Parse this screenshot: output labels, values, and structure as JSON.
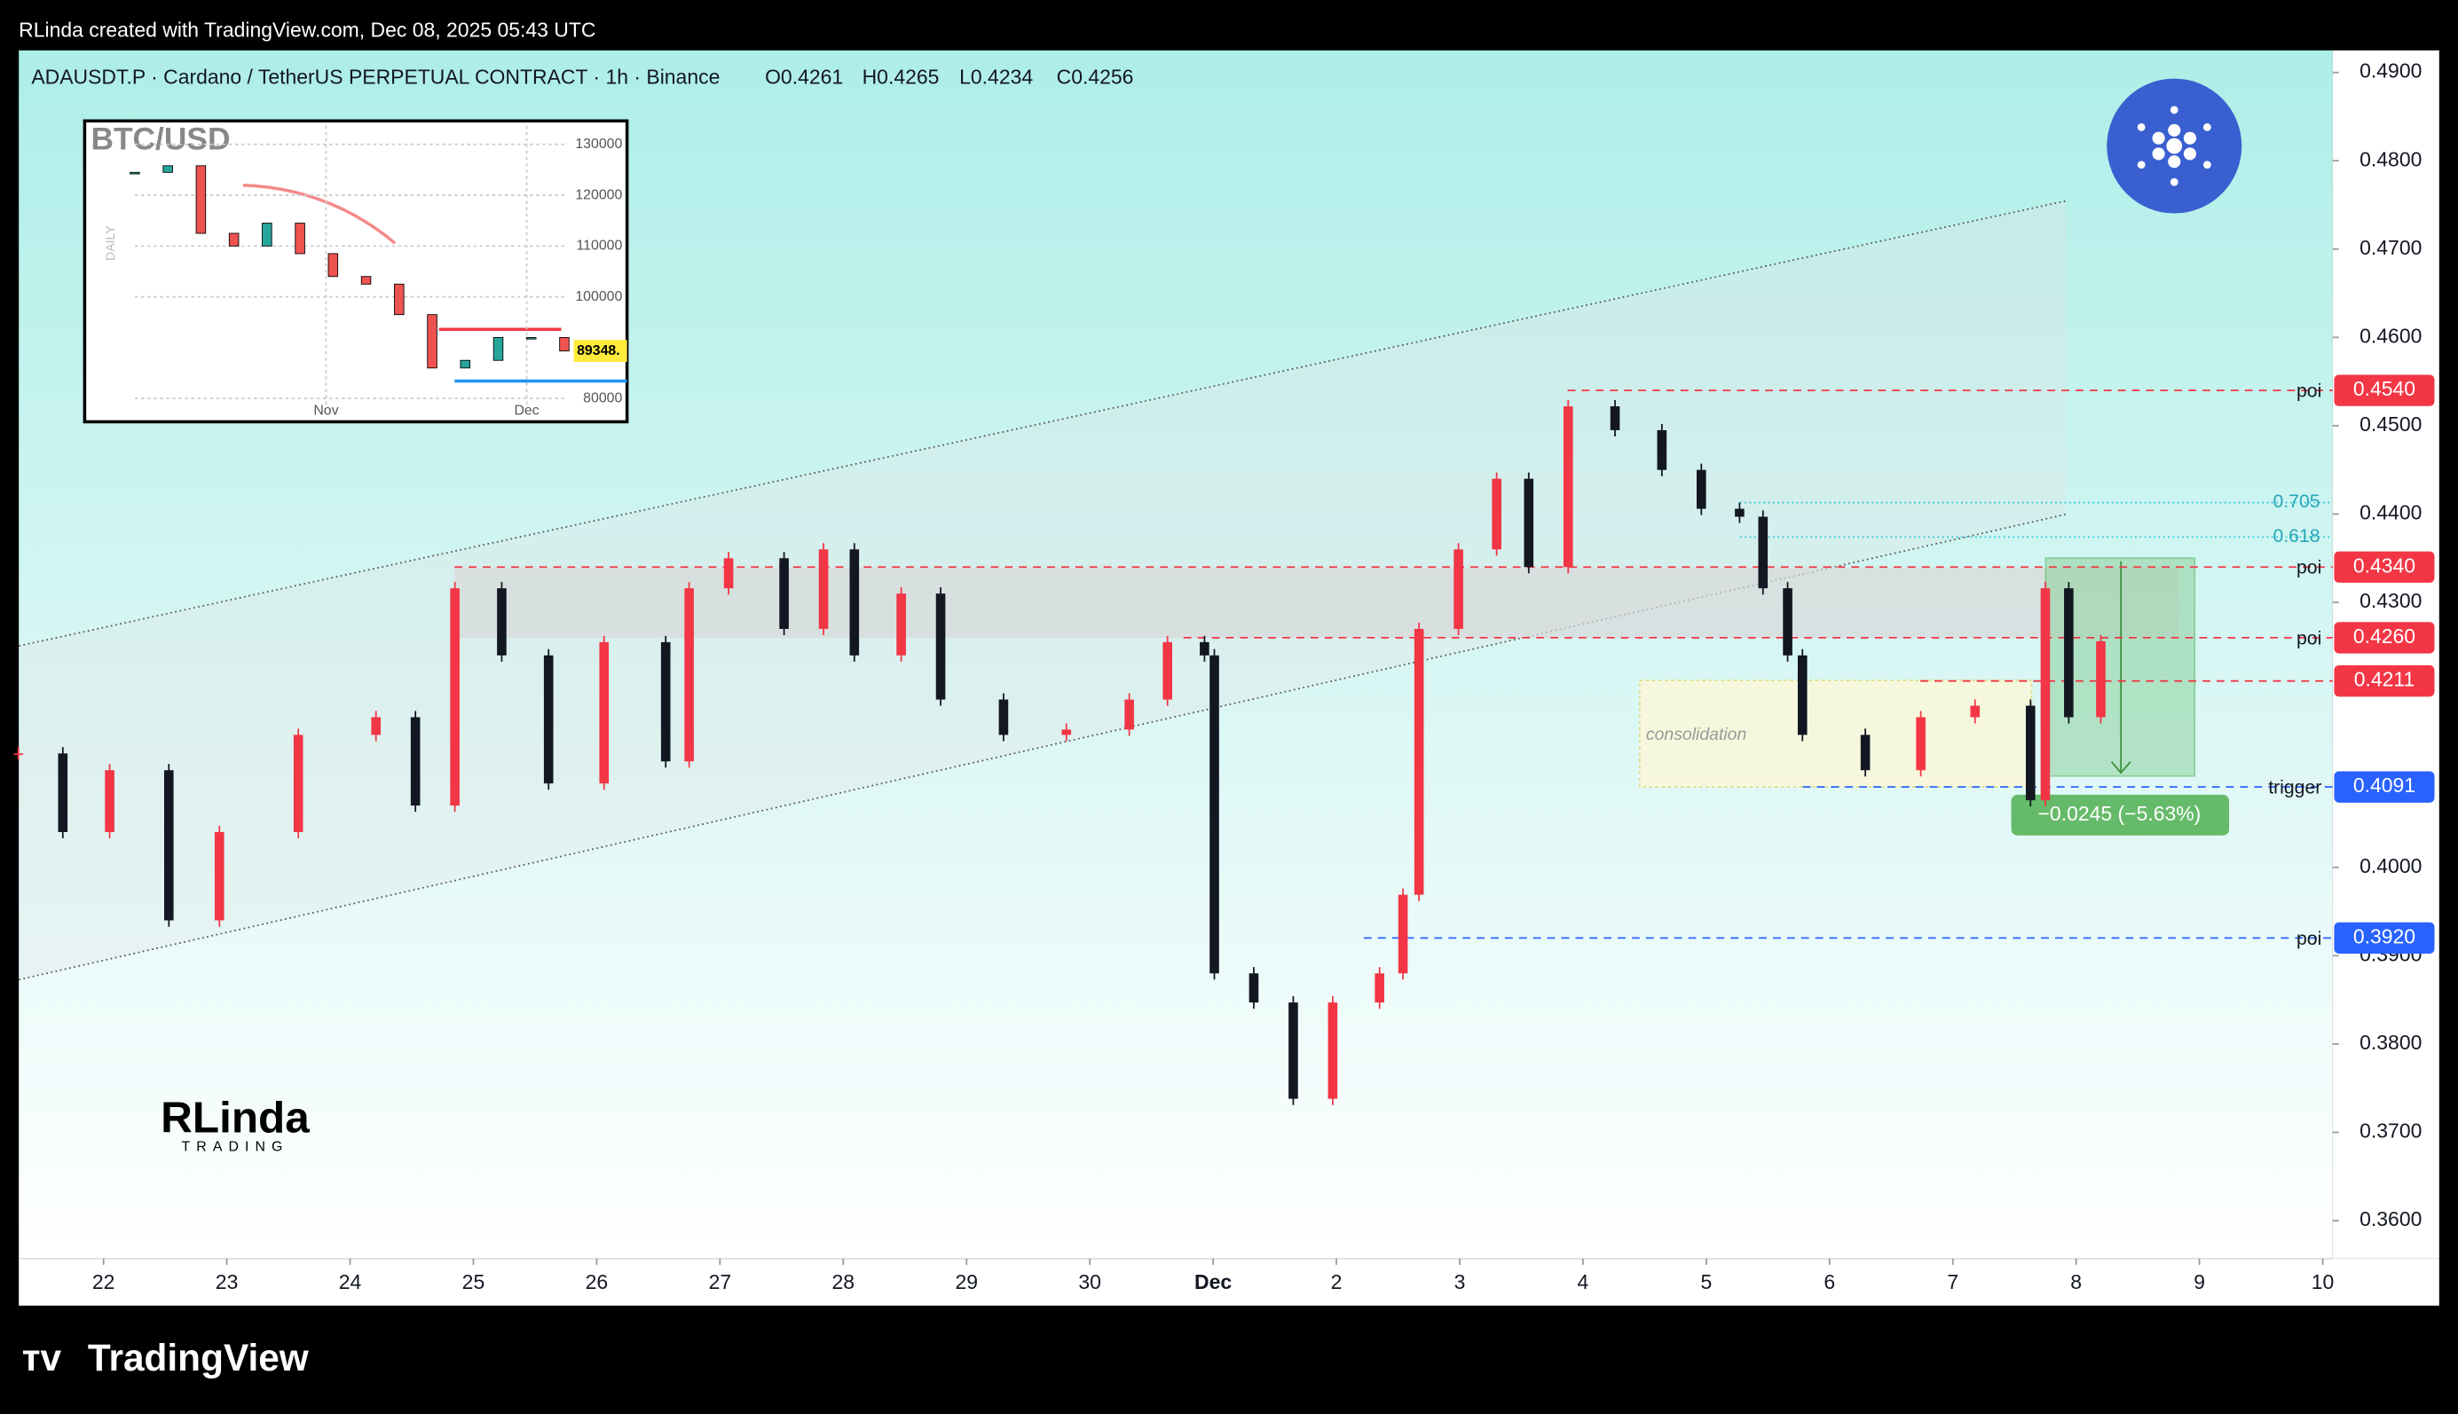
{
  "header": {
    "text": "RLinda created with TradingView.com, Dec 08, 2025 05:43 UTC"
  },
  "chart_data": {
    "type": "candlestick",
    "title": "ADAUSDT.P · Cardano / TetherUS PERPETUAL CONTRACT · 1h · Binance",
    "ohlc": [
      {
        "label": "O",
        "value": 0.4261
      },
      {
        "label": "H",
        "value": 0.4265
      },
      {
        "label": "L",
        "value": 0.4234
      },
      {
        "label": "C",
        "value": 0.4256
      }
    ],
    "up_color": "#f23645",
    "down_color": "#131722",
    "x": [
      -0.69,
      -0.33,
      0.05,
      0.53,
      0.94,
      1.58,
      2.21,
      2.53,
      2.85,
      3.23,
      3.61,
      4.06,
      4.56,
      4.75,
      5.07,
      5.52,
      5.84,
      6.09,
      6.47,
      6.79,
      7.3,
      7.81,
      8.32,
      8.63,
      8.93,
      9.01,
      9.33,
      9.65,
      9.97,
      10.35,
      10.54,
      10.67,
      10.99,
      11.3,
      11.56,
      11.88,
      12.26,
      12.64,
      12.96,
      13.27,
      13.46,
      13.66,
      13.78,
      14.29,
      14.74,
      15.18,
      15.63,
      15.75,
      15.94,
      16.2
    ],
    "closes": [
      0.4129,
      0.404,
      0.411,
      0.394,
      0.404,
      0.415,
      0.417,
      0.407,
      0.4316,
      0.424,
      0.4095,
      0.4255,
      0.412,
      0.4316,
      0.435,
      0.427,
      0.436,
      0.424,
      0.431,
      0.419,
      0.415,
      0.4156,
      0.419,
      0.4255,
      0.424,
      0.388,
      0.3847,
      0.3738,
      0.3847,
      0.388,
      0.3969,
      0.427,
      0.436,
      0.444,
      0.434,
      0.4522,
      0.4495,
      0.445,
      0.4406,
      0.4397,
      0.4316,
      0.424,
      0.415,
      0.411,
      0.417,
      0.4183,
      0.4076,
      0.4316,
      0.417,
      0.4256
    ],
    "xlim": [
      -0.687,
      18.08
    ],
    "xticks": [
      {
        "value": 0,
        "label": "22"
      },
      {
        "value": 1,
        "label": "23"
      },
      {
        "value": 2,
        "label": "24"
      },
      {
        "value": 3,
        "label": "25"
      },
      {
        "value": 4,
        "label": "26"
      },
      {
        "value": 5,
        "label": "27"
      },
      {
        "value": 6,
        "label": "28"
      },
      {
        "value": 7,
        "label": "29"
      },
      {
        "value": 8,
        "label": "30"
      },
      {
        "value": 9,
        "label": "Dec"
      },
      {
        "value": 10,
        "label": "2"
      },
      {
        "value": 11,
        "label": "3"
      },
      {
        "value": 12,
        "label": "4"
      },
      {
        "value": 13,
        "label": "5"
      },
      {
        "value": 14,
        "label": "6"
      },
      {
        "value": 15,
        "label": "7"
      },
      {
        "value": 16,
        "label": "8"
      },
      {
        "value": 17,
        "label": "9"
      },
      {
        "value": 18,
        "label": "10"
      }
    ],
    "ylim": [
      0.3557,
      0.4925
    ],
    "yticks": [
      {
        "value": 0.49,
        "label": "0.4900"
      },
      {
        "value": 0.48,
        "label": "0.4800"
      },
      {
        "value": 0.47,
        "label": "0.4700"
      },
      {
        "value": 0.46,
        "label": "0.4600"
      },
      {
        "value": 0.45,
        "label": "0.4500"
      },
      {
        "value": 0.44,
        "label": "0.4400"
      },
      {
        "value": 0.43,
        "label": "0.4300"
      },
      {
        "value": 0.4,
        "label": "0.4000"
      },
      {
        "value": 0.39,
        "label": "0.3900"
      },
      {
        "value": 0.38,
        "label": "0.3800"
      },
      {
        "value": 0.37,
        "label": "0.3700"
      },
      {
        "value": 0.36,
        "label": "0.3600"
      }
    ],
    "levels": [
      {
        "value": 0.454,
        "label": "0.4540",
        "tag": "poi",
        "color": "#f23645"
      },
      {
        "value": 0.434,
        "label": "0.4340",
        "tag": "poi",
        "color": "#f23645"
      },
      {
        "value": 0.426,
        "label": "0.4260",
        "tag": "poi",
        "color": "#f23645"
      },
      {
        "value": 0.4211,
        "label": "0.4211",
        "color": "#f23645"
      },
      {
        "value": 0.4091,
        "label": "0.4091",
        "tag": "trigger",
        "color": "#2962ff"
      },
      {
        "value": 0.392,
        "label": "0.3920",
        "tag": "poi",
        "color": "#2962ff"
      }
    ],
    "fib": [
      {
        "value": 0.4413,
        "label": "0.705"
      },
      {
        "value": 0.4374,
        "label": "0.618"
      }
    ],
    "annotations": {
      "zone": "consolidation",
      "measure": "−0.0245 (−5.63%)"
    },
    "inset": {
      "title": "BTC/USD",
      "axis_label": "DAILY",
      "ylim": [
        78800,
        133700
      ],
      "yticks": [
        130000,
        120000,
        110000,
        100000,
        80000
      ],
      "xlabels": [
        "Nov",
        "Dec"
      ],
      "values": [
        124500,
        125800,
        112500,
        110000,
        114500,
        108500,
        104000,
        102500,
        96500,
        86000,
        87500,
        92000,
        92000,
        89348
      ],
      "last_label": "89348."
    }
  },
  "watermark": {
    "name": "RLinda",
    "sub": "TRADING"
  },
  "footer": {
    "brand": "TradingView"
  }
}
